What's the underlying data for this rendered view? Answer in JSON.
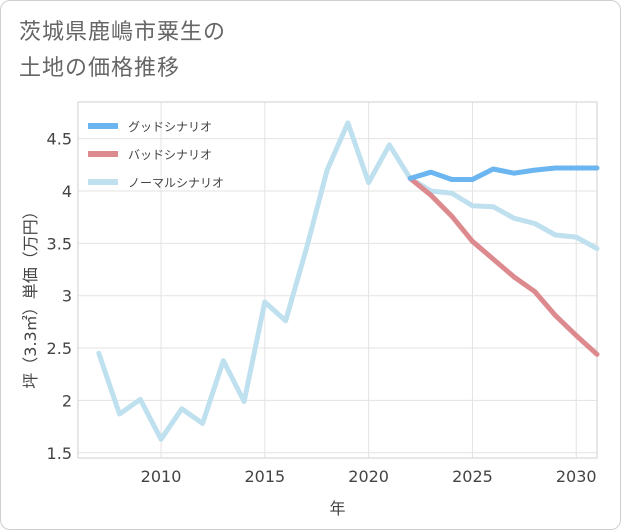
{
  "title": {
    "line1": "茨城県鹿嶋市粟生の",
    "line2": "土地の価格推移"
  },
  "chart_data": {
    "type": "line",
    "xlabel": "年",
    "ylabel": "坪（3.3㎡）単価（万円）",
    "xlim": [
      2006,
      2031
    ],
    "ylim": [
      1.45,
      4.85
    ],
    "xticks": [
      2010,
      2015,
      2020,
      2025,
      2030
    ],
    "yticks": [
      1.5,
      2,
      2.5,
      3,
      3.5,
      4,
      4.5
    ],
    "xtick_labels": [
      "2010",
      "2015",
      "2020",
      "2025",
      "2030"
    ],
    "ytick_labels": [
      "1.5",
      "2",
      "2.5",
      "3",
      "3.5",
      "4",
      "4.5"
    ],
    "grid": true,
    "legend_position": "top-left",
    "series": [
      {
        "name": "グッドシナリオ",
        "color": "#6bb6f0",
        "x": [
          2022,
          2023,
          2024,
          2025,
          2026,
          2027,
          2028,
          2029,
          2030,
          2031
        ],
        "y": [
          4.12,
          4.18,
          4.11,
          4.11,
          4.21,
          4.17,
          4.2,
          4.22,
          4.22,
          4.22
        ]
      },
      {
        "name": "バッドシナリオ",
        "color": "#dd8a8e",
        "x": [
          2022,
          2023,
          2024,
          2025,
          2026,
          2027,
          2028,
          2029,
          2030,
          2031
        ],
        "y": [
          4.12,
          3.96,
          3.76,
          3.52,
          3.35,
          3.18,
          3.04,
          2.81,
          2.62,
          2.44
        ]
      },
      {
        "name": "ノーマルシナリオ",
        "color": "#bfe0ee",
        "x": [
          2007,
          2008,
          2009,
          2010,
          2011,
          2012,
          2013,
          2014,
          2015,
          2016,
          2017,
          2018,
          2019,
          2020,
          2021,
          2022,
          2023,
          2024,
          2025,
          2026,
          2027,
          2028,
          2029,
          2030,
          2031
        ],
        "y": [
          2.45,
          1.87,
          2.01,
          1.63,
          1.92,
          1.78,
          2.38,
          1.99,
          2.94,
          2.76,
          3.45,
          4.2,
          4.65,
          4.08,
          4.44,
          4.12,
          4.0,
          3.98,
          3.86,
          3.85,
          3.74,
          3.69,
          3.58,
          3.56,
          3.45
        ]
      }
    ]
  }
}
